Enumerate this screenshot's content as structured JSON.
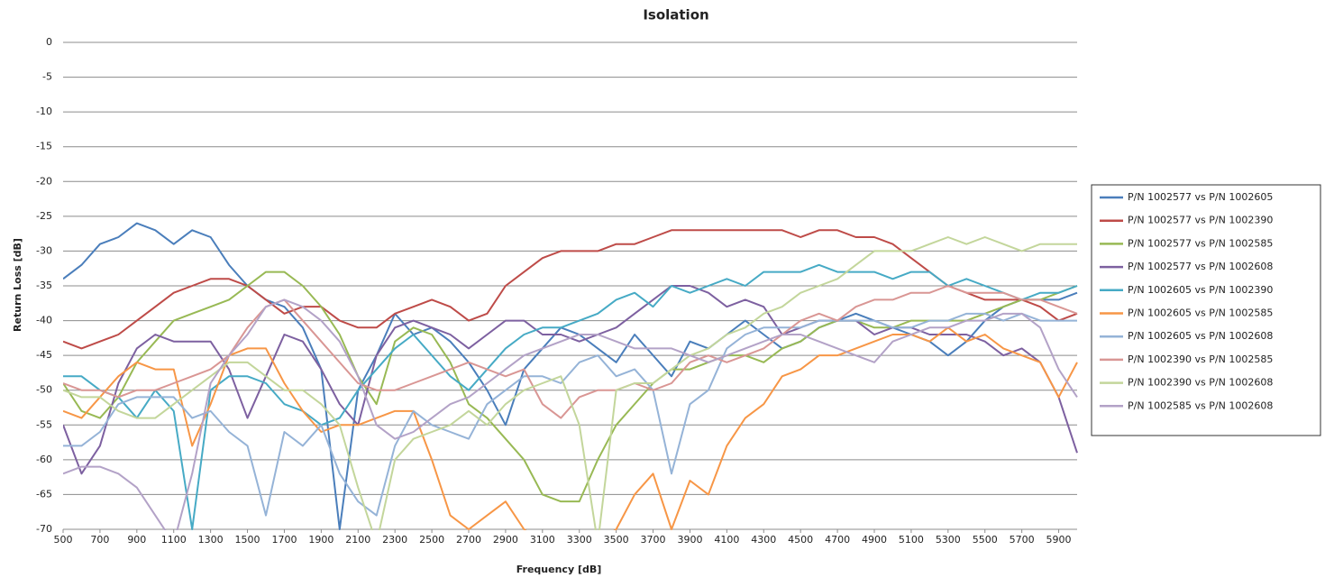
{
  "chart_data": {
    "type": "line",
    "title": "Isolation",
    "x_label": "Frequency [dB]",
    "y_label": "Return Loss [dB]",
    "x": [
      500,
      600,
      700,
      800,
      900,
      1000,
      1100,
      1200,
      1300,
      1400,
      1500,
      1600,
      1700,
      1800,
      1900,
      2000,
      2100,
      2200,
      2300,
      2400,
      2500,
      2600,
      2700,
      2800,
      2900,
      3000,
      3100,
      3200,
      3300,
      3400,
      3500,
      3600,
      3700,
      3800,
      3900,
      4000,
      4100,
      4200,
      4300,
      4400,
      4500,
      4600,
      4700,
      4800,
      4900,
      5000,
      5100,
      5200,
      5300,
      5400,
      5500,
      5600,
      5700,
      5800,
      5900,
      6000
    ],
    "xlim": [
      500,
      6000
    ],
    "xticks": [
      500,
      700,
      900,
      1100,
      1300,
      1500,
      1700,
      1900,
      2100,
      2300,
      2500,
      2700,
      2900,
      3100,
      3300,
      3500,
      3700,
      3900,
      4100,
      4300,
      4500,
      4700,
      4900,
      5100,
      5300,
      5500,
      5700,
      5900
    ],
    "ylim": [
      -70,
      0
    ],
    "yticks": [
      0,
      -5,
      -10,
      -15,
      -20,
      -25,
      -30,
      -35,
      -40,
      -45,
      -50,
      -55,
      -60,
      -65,
      -70
    ],
    "grid": true,
    "legend": "right",
    "series": [
      {
        "name": "P/N 1002577 vs P/N 1002605",
        "color": "#4a7ebb",
        "values": [
          -34,
          -32,
          -29,
          -28,
          -26,
          -27,
          -29,
          -27,
          -28,
          -32,
          -35,
          -37,
          -38,
          -41,
          -47,
          -70,
          -50,
          -45,
          -39,
          -42,
          -41,
          -43,
          -46,
          -50,
          -55,
          -47,
          -44,
          -41,
          -42,
          -44,
          -46,
          -42,
          -45,
          -48,
          -43,
          -44,
          -42,
          -40,
          -42,
          -44,
          -43,
          -41,
          -40,
          -39,
          -40,
          -41,
          -42,
          -43,
          -45,
          -43,
          -40,
          -38,
          -37,
          -37,
          -37,
          -36
        ]
      },
      {
        "name": "P/N 1002577 vs P/N 1002390",
        "color": "#be4b48",
        "values": [
          -43,
          -44,
          -43,
          -42,
          -40,
          -38,
          -36,
          -35,
          -34,
          -34,
          -35,
          -37,
          -39,
          -38,
          -38,
          -40,
          -41,
          -41,
          -39,
          -38,
          -37,
          -38,
          -40,
          -39,
          -35,
          -33,
          -31,
          -30,
          -30,
          -30,
          -29,
          -29,
          -28,
          -27,
          -27,
          -27,
          -27,
          -27,
          -27,
          -27,
          -28,
          -27,
          -27,
          -28,
          -28,
          -29,
          -31,
          -33,
          -35,
          -36,
          -37,
          -37,
          -37,
          -38,
          -40,
          -39
        ]
      },
      {
        "name": "P/N 1002577 vs P/N 1002585",
        "color": "#98b954",
        "values": [
          -49,
          -53,
          -54,
          -51,
          -46,
          -43,
          -40,
          -39,
          -38,
          -37,
          -35,
          -33,
          -33,
          -35,
          -38,
          -42,
          -48,
          -52,
          -43,
          -41,
          -42,
          -46,
          -52,
          -54,
          -57,
          -60,
          -65,
          -66,
          -66,
          -60,
          -55,
          -52,
          -49,
          -47,
          -47,
          -46,
          -45,
          -45,
          -46,
          -44,
          -43,
          -41,
          -40,
          -40,
          -41,
          -41,
          -40,
          -40,
          -40,
          -40,
          -39,
          -38,
          -37,
          -37,
          -36,
          -35
        ]
      },
      {
        "name": "P/N 1002577 vs P/N 1002608",
        "color": "#7d60a0",
        "values": [
          -55,
          -62,
          -58,
          -49,
          -44,
          -42,
          -43,
          -43,
          -43,
          -47,
          -54,
          -48,
          -42,
          -43,
          -47,
          -52,
          -55,
          -45,
          -41,
          -40,
          -41,
          -42,
          -44,
          -42,
          -40,
          -40,
          -42,
          -42,
          -43,
          -42,
          -41,
          -39,
          -37,
          -35,
          -35,
          -36,
          -38,
          -37,
          -38,
          -42,
          -41,
          -40,
          -40,
          -40,
          -42,
          -41,
          -41,
          -42,
          -42,
          -42,
          -43,
          -45,
          -44,
          -46,
          -51,
          -59
        ]
      },
      {
        "name": "P/N 1002605 vs P/N 1002390",
        "color": "#46aac5",
        "values": [
          -48,
          -48,
          -50,
          -51,
          -54,
          -50,
          -53,
          -70,
          -50,
          -48,
          -48,
          -49,
          -52,
          -53,
          -55,
          -54,
          -50,
          -47,
          -44,
          -42,
          -45,
          -48,
          -50,
          -47,
          -44,
          -42,
          -41,
          -41,
          -40,
          -39,
          -37,
          -36,
          -38,
          -35,
          -36,
          -35,
          -34,
          -35,
          -33,
          -33,
          -33,
          -32,
          -33,
          -33,
          -33,
          -34,
          -33,
          -33,
          -35,
          -34,
          -35,
          -36,
          -37,
          -36,
          -36,
          -35
        ]
      },
      {
        "name": "P/N 1002605 vs P/N 1002585",
        "color": "#f79646",
        "values": [
          -53,
          -54,
          -51,
          -48,
          -46,
          -47,
          -47,
          -58,
          -52,
          -45,
          -44,
          -44,
          -49,
          -53,
          -56,
          -55,
          -55,
          -54,
          -53,
          -53,
          -60,
          -68,
          -70,
          -68,
          -66,
          -70,
          -72,
          -71,
          -72,
          -72,
          -70,
          -65,
          -62,
          -70,
          -63,
          -65,
          -58,
          -54,
          -52,
          -48,
          -47,
          -45,
          -45,
          -44,
          -43,
          -42,
          -42,
          -43,
          -41,
          -43,
          -42,
          -44,
          -45,
          -46,
          -51,
          -46
        ]
      },
      {
        "name": "P/N 1002605 vs P/N 1002608",
        "color": "#95b3d7",
        "values": [
          -58,
          -58,
          -56,
          -52,
          -51,
          -51,
          -51,
          -54,
          -53,
          -56,
          -58,
          -68,
          -56,
          -58,
          -55,
          -62,
          -66,
          -68,
          -58,
          -53,
          -55,
          -56,
          -57,
          -52,
          -50,
          -48,
          -48,
          -49,
          -46,
          -45,
          -48,
          -47,
          -50,
          -62,
          -52,
          -50,
          -44,
          -42,
          -41,
          -41,
          -41,
          -40,
          -40,
          -40,
          -40,
          -41,
          -41,
          -40,
          -40,
          -39,
          -39,
          -40,
          -39,
          -40,
          -40,
          -40
        ]
      },
      {
        "name": "P/N 1002390 vs P/N 1002585",
        "color": "#d99694",
        "values": [
          -49,
          -50,
          -50,
          -51,
          -50,
          -50,
          -49,
          -48,
          -47,
          -45,
          -41,
          -38,
          -37,
          -40,
          -43,
          -46,
          -49,
          -50,
          -50,
          -49,
          -48,
          -47,
          -46,
          -47,
          -48,
          -47,
          -52,
          -54,
          -51,
          -50,
          -50,
          -49,
          -50,
          -49,
          -46,
          -45,
          -46,
          -45,
          -44,
          -42,
          -40,
          -39,
          -40,
          -38,
          -37,
          -37,
          -36,
          -36,
          -35,
          -36,
          -36,
          -36,
          -37,
          -37,
          -38,
          -39
        ]
      },
      {
        "name": "P/N 1002390 vs P/N 1002608",
        "color": "#c3d69b",
        "values": [
          -50,
          -51,
          -51,
          -53,
          -54,
          -54,
          -52,
          -50,
          -48,
          -46,
          -46,
          -48,
          -50,
          -50,
          -52,
          -55,
          -64,
          -72,
          -60,
          -57,
          -56,
          -55,
          -53,
          -55,
          -52,
          -50,
          -49,
          -48,
          -55,
          -72,
          -50,
          -49,
          -49,
          -47,
          -45,
          -44,
          -42,
          -41,
          -39,
          -38,
          -36,
          -35,
          -34,
          -32,
          -30,
          -30,
          -30,
          -29,
          -28,
          -29,
          -28,
          -29,
          -30,
          -29,
          -29,
          -29
        ]
      },
      {
        "name": "P/N 1002585 vs P/N 1002608",
        "color": "#b3a2c7",
        "values": [
          -62,
          -61,
          -61,
          -62,
          -64,
          -68,
          -72,
          -62,
          -49,
          -45,
          -42,
          -38,
          -37,
          -38,
          -40,
          -43,
          -48,
          -55,
          -57,
          -56,
          -54,
          -52,
          -51,
          -49,
          -47,
          -45,
          -44,
          -43,
          -42,
          -42,
          -43,
          -44,
          -44,
          -44,
          -45,
          -46,
          -45,
          -44,
          -43,
          -42,
          -42,
          -43,
          -44,
          -45,
          -46,
          -43,
          -42,
          -41,
          -41,
          -40,
          -40,
          -39,
          -39,
          -41,
          -47,
          -51
        ]
      }
    ]
  }
}
